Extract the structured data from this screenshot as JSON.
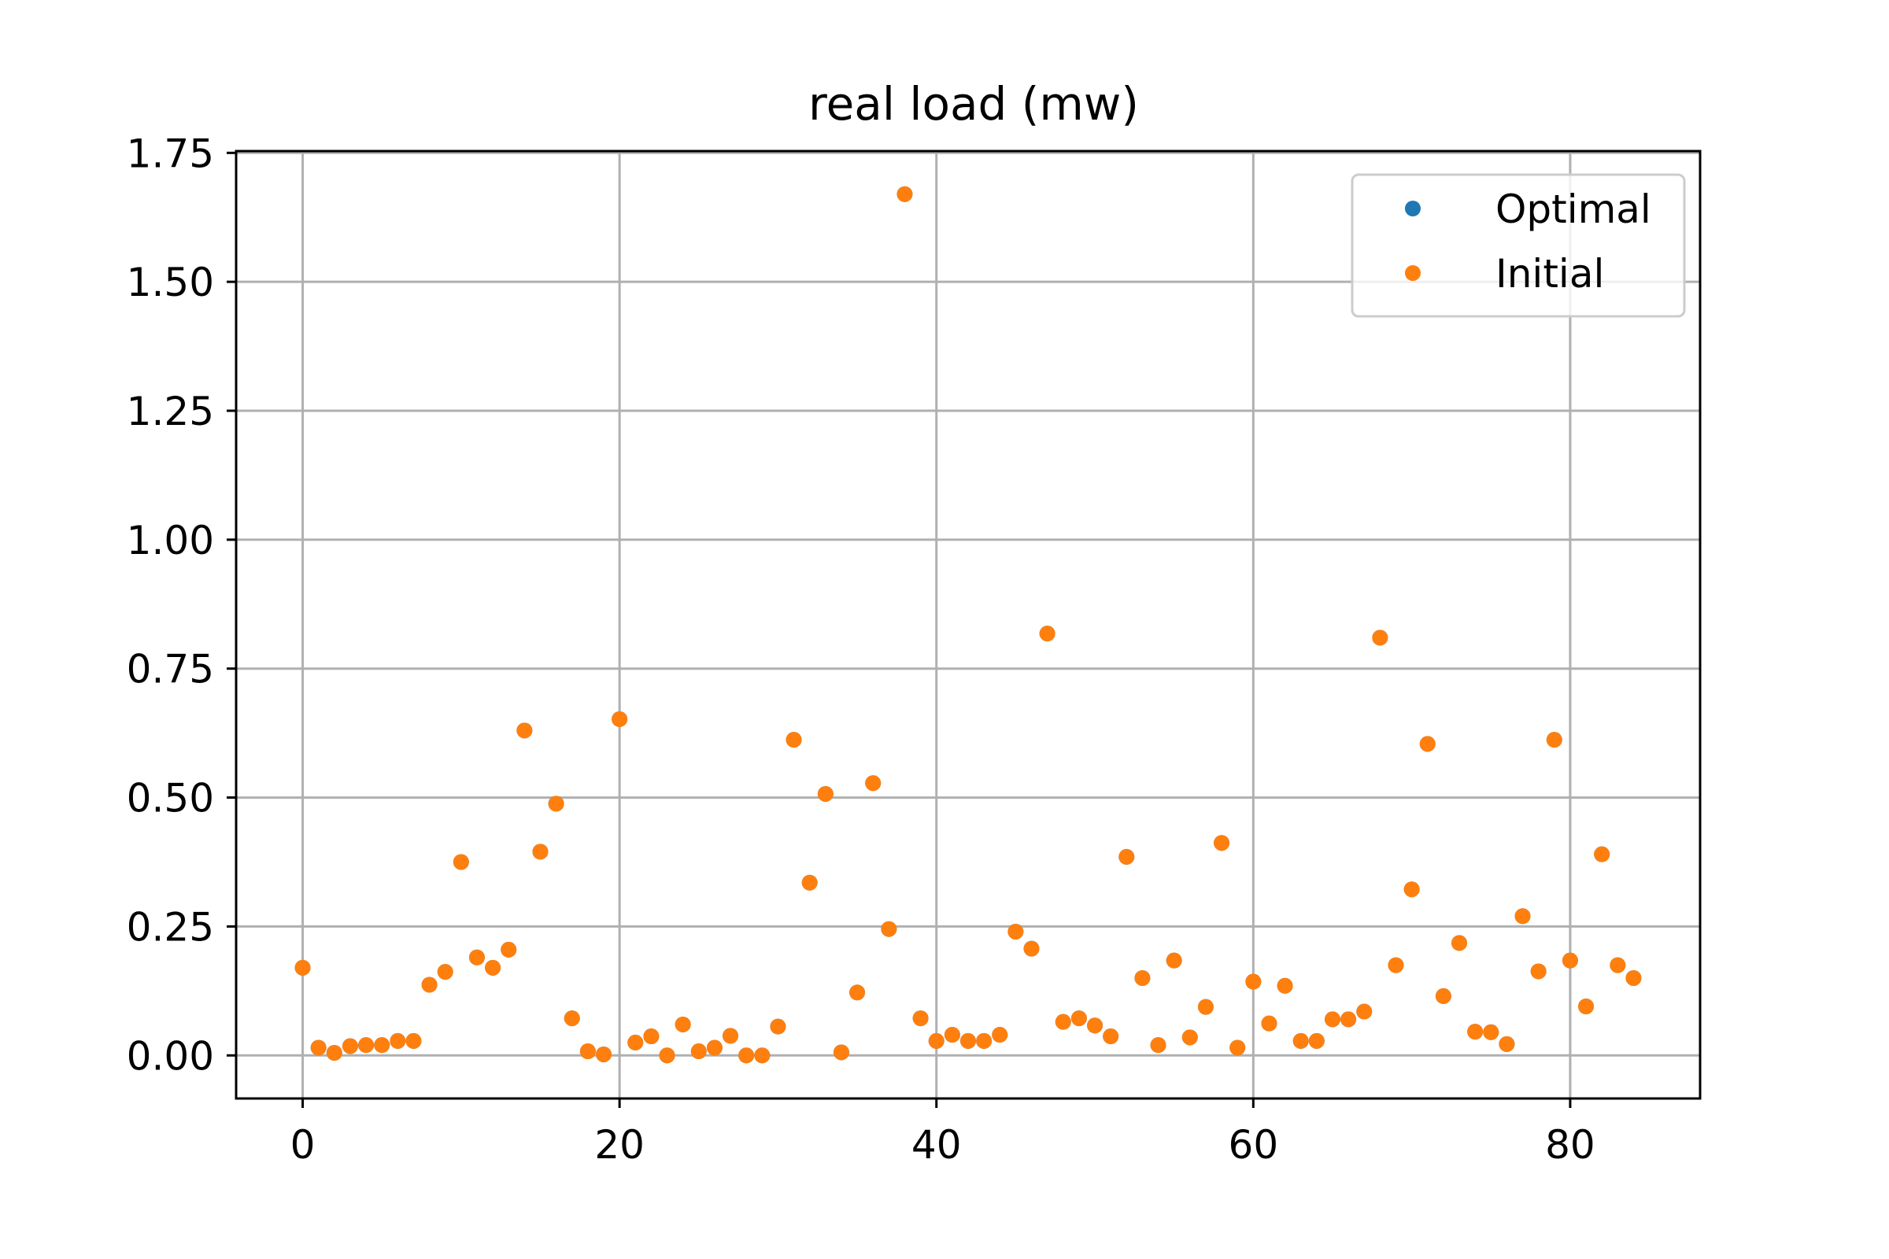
{
  "chart_data": {
    "type": "scatter",
    "title": "real load (mw)",
    "xlabel": "",
    "ylabel": "",
    "xlim": [
      -4.2,
      88.2
    ],
    "ylim": [
      -0.0835,
      1.7535
    ],
    "xticks": [
      0,
      20,
      40,
      60,
      80
    ],
    "xtick_labels": [
      "0",
      "20",
      "40",
      "60",
      "80"
    ],
    "yticks": [
      0.0,
      0.25,
      0.5,
      0.75,
      1.0,
      1.25,
      1.5,
      1.75
    ],
    "ytick_labels": [
      "0.00",
      "0.25",
      "0.50",
      "0.75",
      "1.00",
      "1.25",
      "1.50",
      "1.75"
    ],
    "grid": true,
    "legend_position": "top-right",
    "series": [
      {
        "name": "Optimal",
        "color": "#1f77b4",
        "x": [
          0,
          1,
          2,
          3,
          4,
          5,
          6,
          7,
          8,
          9,
          10,
          11,
          12,
          13,
          14,
          15,
          16,
          17,
          18,
          19,
          20,
          21,
          22,
          23,
          24,
          25,
          26,
          27,
          28,
          29,
          30,
          31,
          32,
          33,
          34,
          35,
          36,
          37,
          38,
          39,
          40,
          41,
          42,
          43,
          44,
          45,
          46,
          47,
          48,
          49,
          50,
          51,
          52,
          53,
          54,
          55,
          56,
          57,
          58,
          59,
          60,
          61,
          62,
          63,
          64,
          65,
          66,
          67,
          68,
          69,
          70,
          71,
          72,
          73,
          74,
          75,
          76,
          77,
          78,
          79,
          80,
          81,
          82,
          83,
          84
        ],
        "y": [
          0.17,
          0.015,
          0.005,
          0.018,
          0.02,
          0.02,
          0.028,
          0.028,
          0.137,
          0.162,
          0.375,
          0.19,
          0.17,
          0.205,
          0.63,
          0.395,
          0.488,
          0.072,
          0.008,
          0.002,
          0.652,
          0.025,
          0.037,
          0.0,
          0.06,
          0.008,
          0.015,
          0.038,
          0.0,
          0.0,
          0.056,
          0.612,
          0.335,
          0.507,
          0.006,
          0.122,
          0.528,
          0.245,
          1.67,
          0.072,
          0.028,
          0.04,
          0.028,
          0.028,
          0.04,
          0.24,
          0.207,
          0.818,
          0.065,
          0.072,
          0.058,
          0.037,
          0.385,
          0.15,
          0.02,
          0.184,
          0.035,
          0.094,
          0.412,
          0.015,
          0.143,
          0.062,
          0.135,
          0.028,
          0.028,
          0.07,
          0.07,
          0.085,
          0.81,
          0.175,
          0.322,
          0.604,
          0.115,
          0.218,
          0.046,
          0.045,
          0.022,
          0.27,
          0.163,
          0.612,
          0.184,
          0.095,
          0.39,
          0.175,
          0.15
        ]
      },
      {
        "name": "Initial",
        "color": "#ff7f0e",
        "x": [
          0,
          1,
          2,
          3,
          4,
          5,
          6,
          7,
          8,
          9,
          10,
          11,
          12,
          13,
          14,
          15,
          16,
          17,
          18,
          19,
          20,
          21,
          22,
          23,
          24,
          25,
          26,
          27,
          28,
          29,
          30,
          31,
          32,
          33,
          34,
          35,
          36,
          37,
          38,
          39,
          40,
          41,
          42,
          43,
          44,
          45,
          46,
          47,
          48,
          49,
          50,
          51,
          52,
          53,
          54,
          55,
          56,
          57,
          58,
          59,
          60,
          61,
          62,
          63,
          64,
          65,
          66,
          67,
          68,
          69,
          70,
          71,
          72,
          73,
          74,
          75,
          76,
          77,
          78,
          79,
          80,
          81,
          82,
          83,
          84
        ],
        "y": [
          0.17,
          0.015,
          0.005,
          0.018,
          0.02,
          0.02,
          0.028,
          0.028,
          0.137,
          0.162,
          0.375,
          0.19,
          0.17,
          0.205,
          0.63,
          0.395,
          0.488,
          0.072,
          0.008,
          0.002,
          0.652,
          0.025,
          0.037,
          0.0,
          0.06,
          0.008,
          0.015,
          0.038,
          0.0,
          0.0,
          0.056,
          0.612,
          0.335,
          0.507,
          0.006,
          0.122,
          0.528,
          0.245,
          1.67,
          0.072,
          0.028,
          0.04,
          0.028,
          0.028,
          0.04,
          0.24,
          0.207,
          0.818,
          0.065,
          0.072,
          0.058,
          0.037,
          0.385,
          0.15,
          0.02,
          0.184,
          0.035,
          0.094,
          0.412,
          0.015,
          0.143,
          0.062,
          0.135,
          0.028,
          0.028,
          0.07,
          0.07,
          0.085,
          0.81,
          0.175,
          0.322,
          0.604,
          0.115,
          0.218,
          0.046,
          0.045,
          0.022,
          0.27,
          0.163,
          0.612,
          0.184,
          0.095,
          0.39,
          0.175,
          0.15
        ]
      }
    ]
  }
}
